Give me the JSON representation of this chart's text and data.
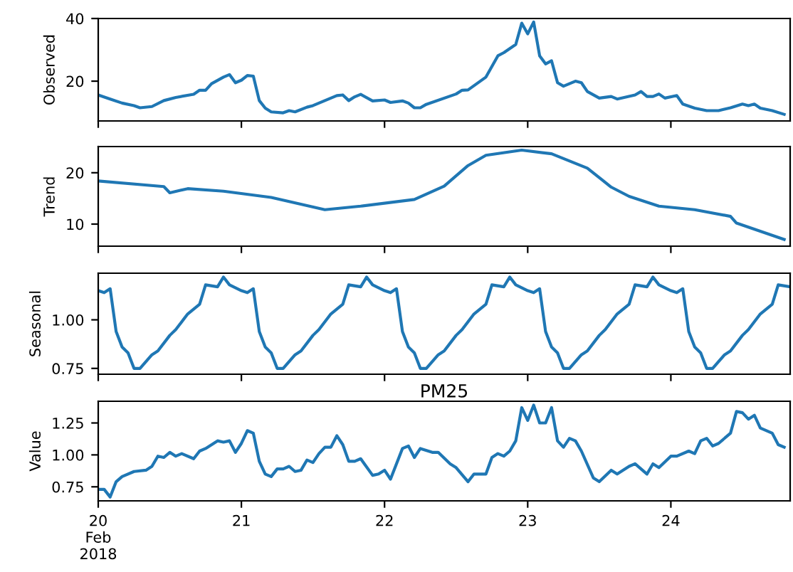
{
  "chart_data": [
    {
      "type": "line",
      "ylabel": "Observed",
      "color": "#1f77b4",
      "xlim": [
        "2018-02-20T00:00",
        "2018-02-24T20:00"
      ],
      "ylim": [
        7.3,
        40
      ],
      "yticks": [
        20,
        40
      ],
      "tick_labels": "y",
      "grid": false,
      "xticks": [
        {
          "value": "2018-02-20",
          "label": null
        },
        {
          "value": "2018-02-21",
          "label": null
        },
        {
          "value": "2018-02-22",
          "label": null
        },
        {
          "value": "2018-02-23",
          "label": null
        },
        {
          "value": "2018-02-24",
          "label": null
        }
      ],
      "x": [
        "2018-02-20T00:00",
        "2018-02-20T02:00",
        "2018-02-20T04:00",
        "2018-02-20T06:00",
        "2018-02-20T07:00",
        "2018-02-20T09:00",
        "2018-02-20T11:00",
        "2018-02-20T13:00",
        "2018-02-20T16:00",
        "2018-02-20T17:00",
        "2018-02-20T18:00",
        "2018-02-20T19:00",
        "2018-02-20T21:00",
        "2018-02-20T22:00",
        "2018-02-20T23:00",
        "2018-02-21T00:00",
        "2018-02-21T01:00",
        "2018-02-21T02:00",
        "2018-02-21T03:00",
        "2018-02-21T04:00",
        "2018-02-21T05:00",
        "2018-02-21T07:00",
        "2018-02-21T08:00",
        "2018-02-21T09:00",
        "2018-02-21T11:00",
        "2018-02-21T12:00",
        "2018-02-21T14:00",
        "2018-02-21T16:00",
        "2018-02-21T17:00",
        "2018-02-21T18:00",
        "2018-02-21T19:00",
        "2018-02-21T20:00",
        "2018-02-21T22:00",
        "2018-02-22T00:00",
        "2018-02-22T01:00",
        "2018-02-22T03:00",
        "2018-02-22T04:00",
        "2018-02-22T05:00",
        "2018-02-22T06:00",
        "2018-02-22T07:00",
        "2018-02-22T12:00",
        "2018-02-22T13:00",
        "2018-02-22T14:00",
        "2018-02-22T17:00",
        "2018-02-22T19:00",
        "2018-02-22T20:00",
        "2018-02-22T22:00",
        "2018-02-22T23:00",
        "2018-02-23T00:00",
        "2018-02-23T01:00",
        "2018-02-23T02:00",
        "2018-02-23T03:00",
        "2018-02-23T04:00",
        "2018-02-23T05:00",
        "2018-02-23T06:00",
        "2018-02-23T08:00",
        "2018-02-23T09:00",
        "2018-02-23T10:00",
        "2018-02-23T12:00",
        "2018-02-23T14:00",
        "2018-02-23T15:00",
        "2018-02-23T18:00",
        "2018-02-23T19:00",
        "2018-02-23T20:00",
        "2018-02-23T21:00",
        "2018-02-23T22:00",
        "2018-02-23T23:00",
        "2018-02-24T01:00",
        "2018-02-24T02:00",
        "2018-02-24T04:00",
        "2018-02-24T06:00",
        "2018-02-24T08:00",
        "2018-02-24T10:00",
        "2018-02-24T12:00",
        "2018-02-24T13:00",
        "2018-02-24T14:00",
        "2018-02-24T15:00",
        "2018-02-24T17:00",
        "2018-02-24T19:00"
      ],
      "values": [
        15.6,
        14.3,
        13,
        12.2,
        11.5,
        11.9,
        13.8,
        14.8,
        15.8,
        17.1,
        17.1,
        19.2,
        21.3,
        22.1,
        19.5,
        20.3,
        21.8,
        21.6,
        13.8,
        11.4,
        10.2,
        9.9,
        10.6,
        10.2,
        11.7,
        12.2,
        13.8,
        15.4,
        15.6,
        13.8,
        15,
        15.8,
        13.7,
        14,
        13.2,
        13.7,
        13,
        11.5,
        11.5,
        12.6,
        15.9,
        17.1,
        17.2,
        21.3,
        28.1,
        29.1,
        31.7,
        38.5,
        35.1,
        38.9,
        28.1,
        25.5,
        26.5,
        19.5,
        18.4,
        20,
        19.5,
        16.7,
        14.6,
        15.1,
        14.3,
        15.6,
        16.7,
        15.1,
        15.1,
        15.9,
        14.6,
        15.4,
        12.7,
        11.4,
        10.6,
        10.6,
        11.5,
        12.7,
        12.2,
        12.7,
        11.4,
        10.6,
        9.4
      ]
    },
    {
      "type": "line",
      "ylabel": "Trend",
      "color": "#1f77b4",
      "xlim": [
        "2018-02-20T00:00",
        "2018-02-24T20:00"
      ],
      "ylim": [
        5.7,
        25.1
      ],
      "yticks": [
        10,
        20
      ],
      "tick_labels": "y",
      "grid": false,
      "xticks": [
        {
          "value": "2018-02-20",
          "label": null
        },
        {
          "value": "2018-02-21",
          "label": null
        },
        {
          "value": "2018-02-22",
          "label": null
        },
        {
          "value": "2018-02-23",
          "label": null
        },
        {
          "value": "2018-02-24",
          "label": null
        }
      ],
      "x": [
        "2018-02-20T00:00",
        "2018-02-20T11:00",
        "2018-02-20T12:00",
        "2018-02-20T15:00",
        "2018-02-20T21:00",
        "2018-02-21T05:00",
        "2018-02-21T14:00",
        "2018-02-21T20:00",
        "2018-02-22T05:00",
        "2018-02-22T10:00",
        "2018-02-22T14:00",
        "2018-02-22T17:00",
        "2018-02-22T23:00",
        "2018-02-23T04:00",
        "2018-02-23T10:00",
        "2018-02-23T14:00",
        "2018-02-23T17:00",
        "2018-02-23T22:00",
        "2018-02-24T04:00",
        "2018-02-24T10:00",
        "2018-02-24T11:00",
        "2018-02-24T19:00"
      ],
      "values": [
        18.4,
        17.3,
        16.1,
        16.9,
        16.4,
        15.2,
        12.8,
        13.5,
        14.8,
        17.4,
        21.4,
        23.4,
        24.4,
        23.7,
        20.9,
        17.2,
        15.4,
        13.5,
        12.8,
        11.5,
        10.2,
        7
      ]
    },
    {
      "type": "line",
      "ylabel": "Seasonal",
      "color": "#1f77b4",
      "xlim": [
        "2018-02-20T00:00",
        "2018-02-24T20:00"
      ],
      "ylim": [
        0.72,
        1.24
      ],
      "yticks": [
        0.75,
        {
          "value": 1,
          "label": "1.00"
        }
      ],
      "tick_labels": "y",
      "grid": false,
      "xticks": [
        {
          "value": "2018-02-20",
          "label": null
        },
        {
          "value": "2018-02-21",
          "label": null
        },
        {
          "value": "2018-02-22",
          "label": null
        },
        {
          "value": "2018-02-23",
          "label": null
        },
        {
          "value": "2018-02-24",
          "label": null
        }
      ],
      "x": [
        "2018-02-20T00:00",
        "2018-02-20T01:00",
        "2018-02-20T02:00",
        "2018-02-20T03:00",
        "2018-02-20T04:00",
        "2018-02-20T05:00",
        "2018-02-20T06:00",
        "2018-02-20T07:00",
        "2018-02-20T09:00",
        "2018-02-20T10:00",
        "2018-02-20T12:00",
        "2018-02-20T13:00",
        "2018-02-20T15:00",
        "2018-02-20T17:00",
        "2018-02-20T18:00",
        "2018-02-20T20:00",
        "2018-02-20T21:00",
        "2018-02-20T22:00",
        "2018-02-21T00:00",
        "2018-02-21T01:00",
        "2018-02-21T02:00",
        "2018-02-21T03:00",
        "2018-02-21T04:00",
        "2018-02-21T05:00",
        "2018-02-21T06:00",
        "2018-02-21T07:00",
        "2018-02-21T09:00",
        "2018-02-21T10:00",
        "2018-02-21T12:00",
        "2018-02-21T13:00",
        "2018-02-21T15:00",
        "2018-02-21T17:00",
        "2018-02-21T18:00",
        "2018-02-21T20:00",
        "2018-02-21T21:00",
        "2018-02-21T22:00",
        "2018-02-22T00:00",
        "2018-02-22T01:00",
        "2018-02-22T02:00",
        "2018-02-22T03:00",
        "2018-02-22T04:00",
        "2018-02-22T05:00",
        "2018-02-22T06:00",
        "2018-02-22T07:00",
        "2018-02-22T09:00",
        "2018-02-22T10:00",
        "2018-02-22T12:00",
        "2018-02-22T13:00",
        "2018-02-22T15:00",
        "2018-02-22T17:00",
        "2018-02-22T18:00",
        "2018-02-22T20:00",
        "2018-02-22T21:00",
        "2018-02-22T22:00",
        "2018-02-23T00:00",
        "2018-02-23T01:00",
        "2018-02-23T02:00",
        "2018-02-23T03:00",
        "2018-02-23T04:00",
        "2018-02-23T05:00",
        "2018-02-23T06:00",
        "2018-02-23T07:00",
        "2018-02-23T09:00",
        "2018-02-23T10:00",
        "2018-02-23T12:00",
        "2018-02-23T13:00",
        "2018-02-23T15:00",
        "2018-02-23T17:00",
        "2018-02-23T18:00",
        "2018-02-23T20:00",
        "2018-02-23T21:00",
        "2018-02-23T22:00",
        "2018-02-24T00:00",
        "2018-02-24T01:00",
        "2018-02-24T02:00",
        "2018-02-24T03:00",
        "2018-02-24T04:00",
        "2018-02-24T05:00",
        "2018-02-24T06:00",
        "2018-02-24T07:00",
        "2018-02-24T09:00",
        "2018-02-24T10:00",
        "2018-02-24T12:00",
        "2018-02-24T13:00",
        "2018-02-24T15:00",
        "2018-02-24T17:00",
        "2018-02-24T18:00",
        "2018-02-24T20:00"
      ],
      "values": [
        1.15,
        1.14,
        1.16,
        0.94,
        0.86,
        0.83,
        0.75,
        0.75,
        0.82,
        0.84,
        0.92,
        0.95,
        1.03,
        1.08,
        1.18,
        1.17,
        1.22,
        1.18,
        1.15,
        1.14,
        1.16,
        0.94,
        0.86,
        0.83,
        0.75,
        0.75,
        0.82,
        0.84,
        0.92,
        0.95,
        1.03,
        1.08,
        1.18,
        1.17,
        1.22,
        1.18,
        1.15,
        1.14,
        1.16,
        0.94,
        0.86,
        0.83,
        0.75,
        0.75,
        0.82,
        0.84,
        0.92,
        0.95,
        1.03,
        1.08,
        1.18,
        1.17,
        1.22,
        1.18,
        1.15,
        1.14,
        1.16,
        0.94,
        0.86,
        0.83,
        0.75,
        0.75,
        0.82,
        0.84,
        0.92,
        0.95,
        1.03,
        1.08,
        1.18,
        1.17,
        1.22,
        1.18,
        1.15,
        1.14,
        1.16,
        0.94,
        0.86,
        0.83,
        0.75,
        0.75,
        0.82,
        0.84,
        0.92,
        0.95,
        1.03,
        1.08,
        1.18,
        1.17
      ]
    },
    {
      "type": "line",
      "title": "PM25",
      "ylabel": "Value",
      "color": "#1f77b4",
      "xlim": [
        "2018-02-20T00:00",
        "2018-02-24T20:00"
      ],
      "ylim": [
        0.64,
        1.42
      ],
      "yticks": [
        0.75,
        {
          "value": 1,
          "label": "1.00"
        },
        1.25
      ],
      "grid": false,
      "xticks": [
        {
          "value": "2018-02-20",
          "label": "20\nFeb\n2018"
        },
        {
          "value": "2018-02-21",
          "label": "21"
        },
        {
          "value": "2018-02-22",
          "label": "22"
        },
        {
          "value": "2018-02-23",
          "label": "23"
        },
        {
          "value": "2018-02-24",
          "label": "24"
        }
      ],
      "x": [
        "2018-02-20T00:00",
        "2018-02-20T01:00",
        "2018-02-20T02:00",
        "2018-02-20T03:00",
        "2018-02-20T04:00",
        "2018-02-20T06:00",
        "2018-02-20T08:00",
        "2018-02-20T09:00",
        "2018-02-20T10:00",
        "2018-02-20T11:00",
        "2018-02-20T12:00",
        "2018-02-20T13:00",
        "2018-02-20T14:00",
        "2018-02-20T16:00",
        "2018-02-20T17:00",
        "2018-02-20T18:00",
        "2018-02-20T20:00",
        "2018-02-20T21:00",
        "2018-02-20T22:00",
        "2018-02-20T23:00",
        "2018-02-21T00:00",
        "2018-02-21T01:00",
        "2018-02-21T02:00",
        "2018-02-21T03:00",
        "2018-02-21T04:00",
        "2018-02-21T05:00",
        "2018-02-21T06:00",
        "2018-02-21T07:00",
        "2018-02-21T08:00",
        "2018-02-21T09:00",
        "2018-02-21T10:00",
        "2018-02-21T11:00",
        "2018-02-21T12:00",
        "2018-02-21T13:00",
        "2018-02-21T14:00",
        "2018-02-21T15:00",
        "2018-02-21T16:00",
        "2018-02-21T17:00",
        "2018-02-21T18:00",
        "2018-02-21T19:00",
        "2018-02-21T20:00",
        "2018-02-21T22:00",
        "2018-02-21T23:00",
        "2018-02-22T00:00",
        "2018-02-22T01:00",
        "2018-02-22T03:00",
        "2018-02-22T04:00",
        "2018-02-22T05:00",
        "2018-02-22T06:00",
        "2018-02-22T08:00",
        "2018-02-22T09:00",
        "2018-02-22T11:00",
        "2018-02-22T12:00",
        "2018-02-22T14:00",
        "2018-02-22T15:00",
        "2018-02-22T17:00",
        "2018-02-22T18:00",
        "2018-02-22T19:00",
        "2018-02-22T20:00",
        "2018-02-22T21:00",
        "2018-02-22T22:00",
        "2018-02-22T23:00",
        "2018-02-23T00:00",
        "2018-02-23T01:00",
        "2018-02-23T02:00",
        "2018-02-23T03:00",
        "2018-02-23T04:00",
        "2018-02-23T05:00",
        "2018-02-23T06:00",
        "2018-02-23T07:00",
        "2018-02-23T08:00",
        "2018-02-23T09:00",
        "2018-02-23T11:00",
        "2018-02-23T12:00",
        "2018-02-23T14:00",
        "2018-02-23T15:00",
        "2018-02-23T17:00",
        "2018-02-23T18:00",
        "2018-02-23T20:00",
        "2018-02-23T21:00",
        "2018-02-23T22:00",
        "2018-02-24T00:00",
        "2018-02-24T01:00",
        "2018-02-24T03:00",
        "2018-02-24T04:00",
        "2018-02-24T05:00",
        "2018-02-24T06:00",
        "2018-02-24T07:00",
        "2018-02-24T08:00",
        "2018-02-24T10:00",
        "2018-02-24T11:00",
        "2018-02-24T12:00",
        "2018-02-24T13:00",
        "2018-02-24T14:00",
        "2018-02-24T15:00",
        "2018-02-24T17:00",
        "2018-02-24T18:00",
        "2018-02-24T19:00"
      ],
      "values": [
        0.73,
        0.73,
        0.67,
        0.79,
        0.83,
        0.87,
        0.88,
        0.91,
        0.99,
        0.98,
        1.02,
        0.99,
        1.01,
        0.97,
        1.03,
        1.05,
        1.11,
        1.1,
        1.11,
        1.02,
        1.09,
        1.19,
        1.17,
        0.95,
        0.85,
        0.83,
        0.89,
        0.89,
        0.91,
        0.87,
        0.88,
        0.96,
        0.94,
        1.01,
        1.06,
        1.06,
        1.15,
        1.08,
        0.95,
        0.95,
        0.97,
        0.84,
        0.85,
        0.88,
        0.81,
        1.05,
        1.07,
        0.98,
        1.05,
        1.02,
        1.02,
        0.93,
        0.9,
        0.79,
        0.85,
        0.85,
        0.98,
        1.01,
        0.99,
        1.03,
        1.11,
        1.37,
        1.27,
        1.39,
        1.25,
        1.25,
        1.37,
        1.11,
        1.06,
        1.13,
        1.11,
        1.03,
        0.82,
        0.79,
        0.88,
        0.85,
        0.91,
        0.93,
        0.85,
        0.93,
        0.9,
        0.99,
        0.99,
        1.03,
        1.01,
        1.11,
        1.13,
        1.07,
        1.09,
        1.17,
        1.34,
        1.33,
        1.28,
        1.31,
        1.21,
        1.17,
        1.08,
        1.06
      ]
    }
  ]
}
